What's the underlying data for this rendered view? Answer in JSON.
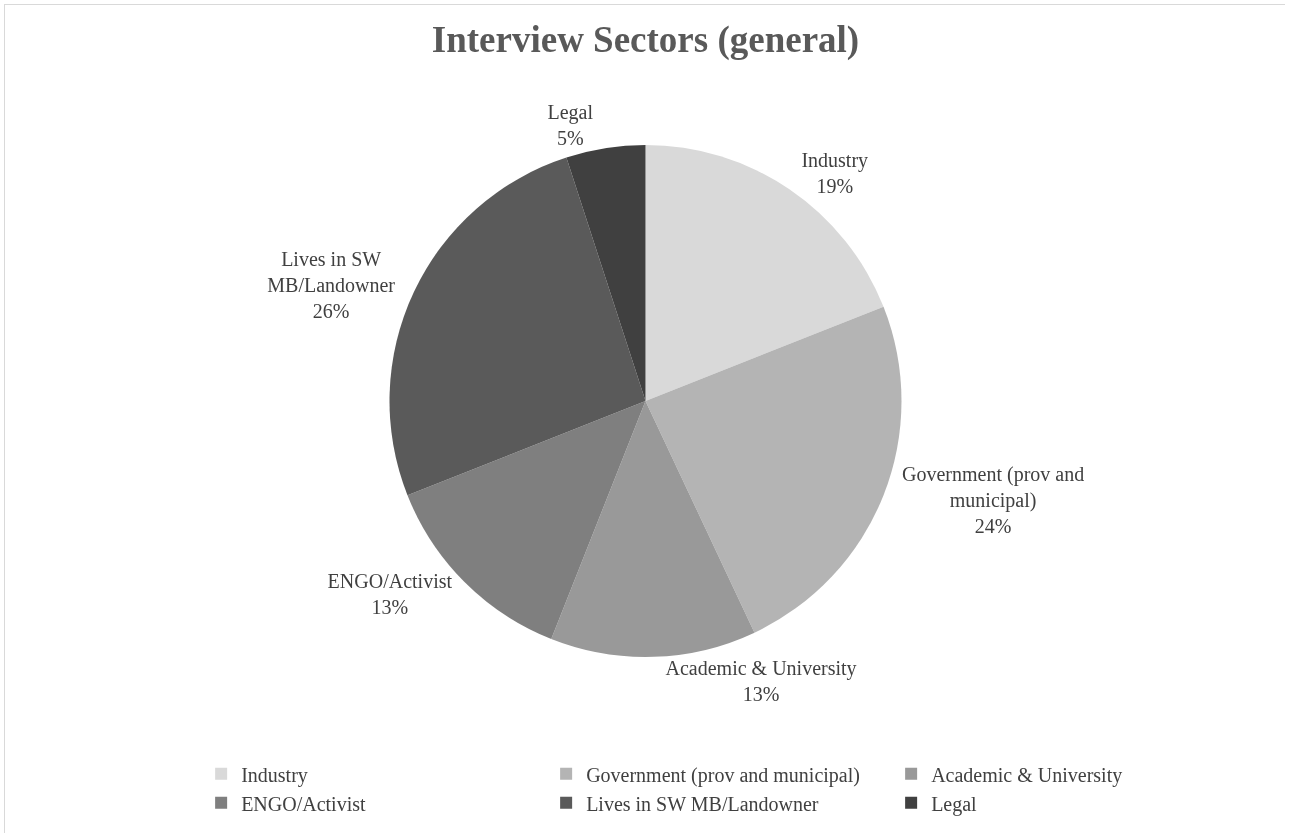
{
  "chart_data": {
    "type": "pie",
    "title": "Interview Sectors (general)",
    "categories": [
      "Industry",
      "Government (prov and municipal)",
      "Academic & University",
      "ENGO/Activist",
      "Lives in SW MB/Landowner",
      "Legal"
    ],
    "values": [
      19,
      24,
      13,
      13,
      26,
      5
    ],
    "value_labels": [
      "19%",
      "24%",
      "13%",
      "13%",
      "26%",
      "5%"
    ],
    "colors": [
      "#d9d9d9",
      "#b4b4b4",
      "#999999",
      "#7f7f7f",
      "#5a5a5a",
      "#404040"
    ],
    "legend": "bottom"
  }
}
